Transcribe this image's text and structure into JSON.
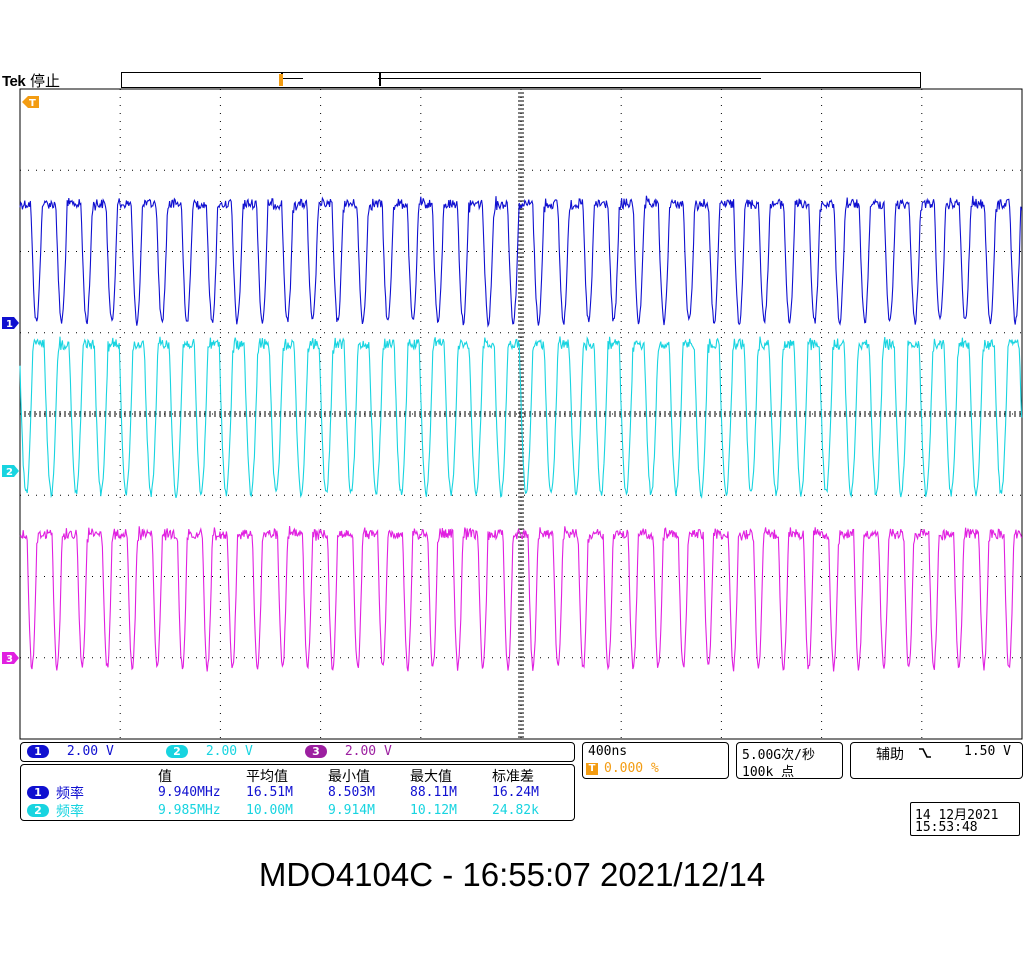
{
  "header": {
    "brand": "Tek",
    "state": "停止"
  },
  "markers": {
    "trigger": "T",
    "ch1": "1",
    "ch2": "2",
    "ch3": "3"
  },
  "colors": {
    "ch1": "#1010d0",
    "ch2": "#18d4e0",
    "ch3": "#e020e0",
    "trigger": "#f39c12",
    "grid": "#000000"
  },
  "channels": [
    {
      "id": "1",
      "scale": "2.00 V",
      "color": "#1010d0"
    },
    {
      "id": "2",
      "scale": "2.00 V",
      "color": "#18d4e0"
    },
    {
      "id": "3",
      "scale": "2.00 V",
      "color": "#9c1fa0"
    }
  ],
  "timebase": {
    "scale": "400ns",
    "trigger_position": "0.000 %"
  },
  "acquisition": {
    "sample_rate": "5.00G次/秒",
    "record_length": "100k 点"
  },
  "trigger": {
    "source": "辅助",
    "slope_icon": "falling-edge-icon",
    "level": "1.50 V"
  },
  "measurements": {
    "headers": [
      "值",
      "平均值",
      "最小值",
      "最大值",
      "标准差"
    ],
    "rows": [
      {
        "channel": "1",
        "name": "频率",
        "value": "9.940MHz",
        "mean": "16.51M",
        "min": "8.503M",
        "max": "88.11M",
        "std": "16.24M"
      },
      {
        "channel": "2",
        "name": "频率",
        "value": "9.985MHz",
        "mean": "10.00M",
        "min": "9.914M",
        "max": "10.12M",
        "std": "24.82k"
      }
    ]
  },
  "datetime": {
    "date": "14 12月2021",
    "time": "15:53:48"
  },
  "caption": "MDO4104C - 16:55:07   2021/12/14"
}
